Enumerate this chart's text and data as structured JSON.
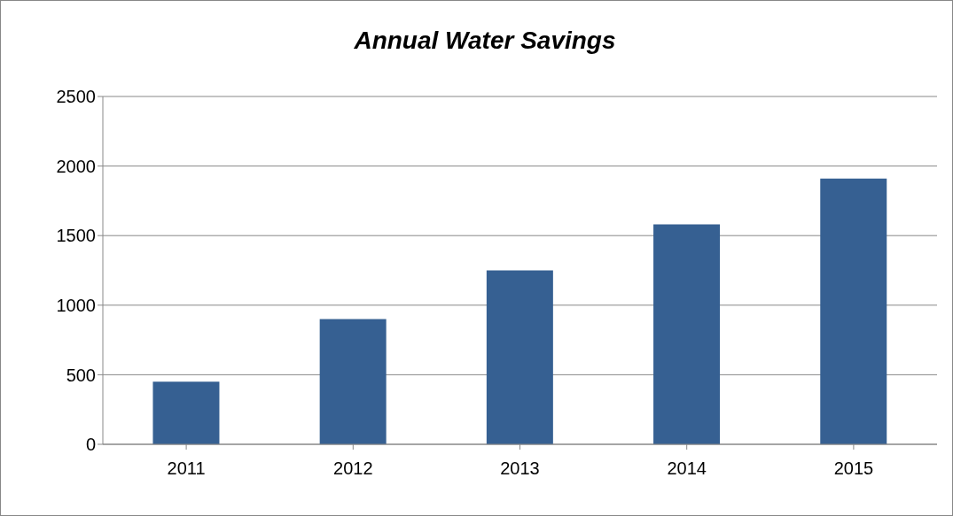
{
  "chart_data": {
    "type": "bar",
    "title": "Annual Water Savings",
    "categories": [
      "2011",
      "2012",
      "2013",
      "2014",
      "2015"
    ],
    "values": [
      450,
      900,
      1250,
      1580,
      1910
    ],
    "color": "#366092",
    "ylim": [
      0,
      2500
    ],
    "yticks": [
      0,
      500,
      1000,
      1500,
      2000,
      2500
    ],
    "grid": "y",
    "legend": false
  }
}
